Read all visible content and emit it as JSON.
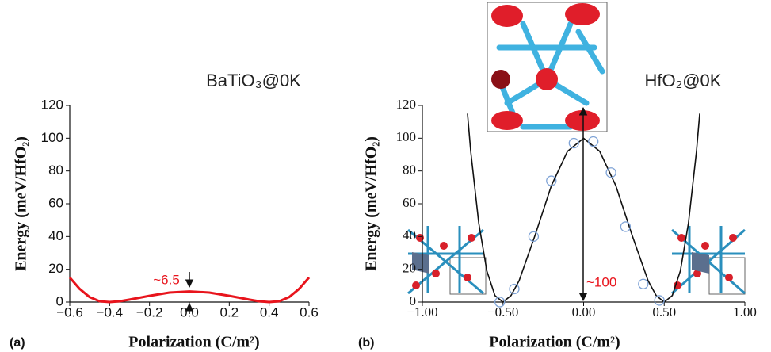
{
  "chart_data": [
    {
      "type": "line",
      "panel_label": "(a)",
      "title": "BaTiO₃@0K",
      "xlabel": "Polarization (C/m²)",
      "ylabel": "Energy (meV/HfO₂)",
      "annotation": "~6.5",
      "xlim": [
        -0.6,
        0.6
      ],
      "xticks": [
        {
          "value": -0.6,
          "label": "−0.6"
        },
        {
          "value": -0.4,
          "label": "−0.4"
        },
        {
          "value": -0.2,
          "label": "−0.2"
        },
        {
          "value": 0,
          "label": "0.0"
        },
        0.2,
        0.4,
        0.6
      ],
      "ylim": [
        0,
        120
      ],
      "yticks": [
        0,
        20,
        40,
        60,
        80,
        100,
        120
      ],
      "series": [
        {
          "color": "#e8141c",
          "mode": "line",
          "x": [
            -0.6,
            -0.55,
            -0.5,
            -0.45,
            -0.4,
            -0.35,
            -0.3,
            -0.2,
            -0.1,
            0,
            0.1,
            0.2,
            0.3,
            0.35,
            0.4,
            0.45,
            0.5,
            0.55,
            0.6
          ],
          "values": [
            15,
            8,
            3,
            0.5,
            0,
            0.5,
            1.5,
            3.8,
            5.8,
            6.5,
            5.8,
            3.8,
            1.5,
            0.5,
            0,
            0.5,
            3,
            8,
            15
          ]
        }
      ]
    },
    {
      "type": "line",
      "panel_label": "(b)",
      "title": "HfO₂@0K",
      "xlabel": "Polarization (C/m²)",
      "ylabel": "Energy (meV/HfO₂)",
      "annotation": "~100",
      "xlim": [
        -1,
        1
      ],
      "xticks": [
        {
          "value": -1,
          "label": "−1.00"
        },
        {
          "value": -0.5,
          "label": "−0.50"
        },
        {
          "value": 0,
          "label": "0.00"
        },
        {
          "value": 0.5,
          "label": "0.50"
        },
        {
          "value": 1,
          "label": "1.00"
        }
      ],
      "ylim": [
        0,
        120
      ],
      "yticks": [
        0,
        20,
        40,
        60,
        80,
        100,
        120
      ],
      "series": [
        {
          "color": "#111111",
          "mode": "line",
          "x": [
            -0.72,
            -0.7,
            -0.65,
            -0.6,
            -0.55,
            -0.5,
            -0.45,
            -0.4,
            -0.3,
            -0.2,
            -0.1,
            0,
            0.1,
            0.2,
            0.3,
            0.4,
            0.45,
            0.5,
            0.55,
            0.6,
            0.65,
            0.7,
            0.72
          ],
          "values": [
            115,
            92,
            48,
            19,
            4,
            0,
            4,
            13,
            41,
            71,
            92,
            100,
            92,
            71,
            41,
            13,
            4,
            0,
            4,
            19,
            48,
            92,
            115
          ]
        },
        {
          "color": "#7fa3d6",
          "mode": "markers",
          "x": [
            -0.52,
            -0.43,
            -0.31,
            -0.2,
            -0.06,
            0.06,
            0.17,
            0.26,
            0.37,
            0.47
          ],
          "values": [
            0,
            8,
            40,
            74,
            97,
            98,
            79,
            46,
            11,
            1
          ]
        }
      ]
    }
  ]
}
